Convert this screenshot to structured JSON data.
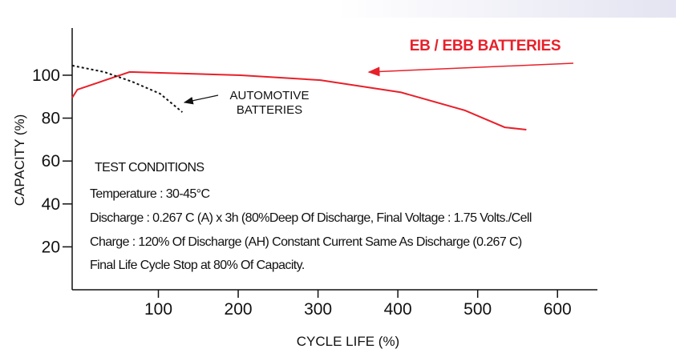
{
  "chart_data": {
    "type": "line",
    "x_label": "CYCLE LIFE (%)",
    "y_label": "CAPACITY (%)",
    "xlim": [
      -8,
      650
    ],
    "ylim": [
      0,
      122
    ],
    "xticks": [
      100,
      200,
      300,
      400,
      500,
      600
    ],
    "yticks": [
      20,
      40,
      60,
      80,
      100
    ],
    "series": [
      {
        "name": "EB / EBB BATTERIES",
        "color": "#e8202a",
        "style": "solid",
        "x": [
          -8,
          -1.5,
          64,
          203,
          303,
          404,
          484,
          534,
          561
        ],
        "values": [
          89.5,
          93.3,
          101.5,
          100,
          97.7,
          92,
          83.6,
          75.7,
          74.6
        ]
      },
      {
        "name": "AUTOMOTIVE BATTERIES",
        "color": "#111111",
        "style": "dotted",
        "x": [
          -8,
          32,
          67,
          102,
          130
        ],
        "values": [
          104.5,
          101.5,
          97,
          91.4,
          82.8
        ]
      }
    ],
    "notes": {
      "title": "TEST CONDITIONS",
      "lines": [
        "Temperature : 30-45°C",
        "Discharge : 0.267 C (A) x 3h (80%Deep Of Discharge, Final Voltage : 1.75 Volts./Cell",
        "Charge : 120% Of Discharge (AH) Constant Current Same As Discharge (0.267 C)",
        "Final Life Cycle Stop at 80% Of Capacity."
      ]
    }
  }
}
